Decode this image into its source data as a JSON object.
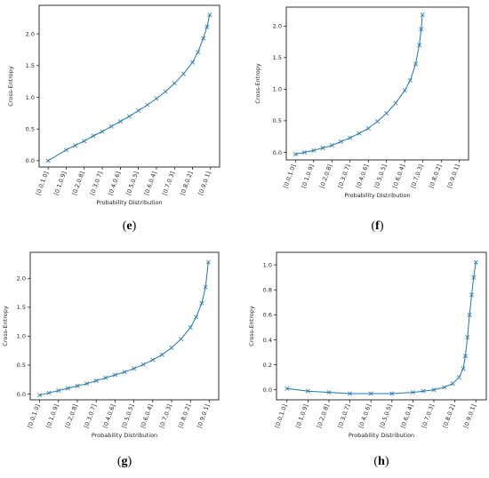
{
  "chart_data": [
    {
      "panel": "e",
      "caption": "(e)",
      "type": "line",
      "marker": "x",
      "color": "#1f77b4",
      "xlabel": "Probability Distribution",
      "ylabel": "Cross-Entropy",
      "x_ticks": [
        "[0.0,1.0]",
        "[0.1,0.9]",
        "[0.2,0.8]",
        "[0.3,0.7]",
        "[0.4,0.6]",
        "[0.5,0.5]",
        "[0.6,0.4]",
        "[0.7,0.3]",
        "[0.8,0.2]",
        "[0.9,0.1]"
      ],
      "y_ticks": [
        "0.0",
        "0.5",
        "1.0",
        "1.5",
        "2.0"
      ],
      "xlim": [
        -0.5,
        9.5
      ],
      "ylim": [
        -0.1,
        2.45
      ],
      "x": [
        0,
        1,
        1.5,
        2,
        2.5,
        3,
        3.5,
        4,
        4.5,
        5,
        5.5,
        6,
        6.5,
        7,
        7.5,
        8,
        8.3,
        8.6,
        8.8,
        8.95
      ],
      "y": [
        0.0,
        0.17,
        0.24,
        0.31,
        0.39,
        0.46,
        0.54,
        0.62,
        0.7,
        0.79,
        0.88,
        0.98,
        1.09,
        1.22,
        1.37,
        1.55,
        1.71,
        1.93,
        2.11,
        2.3
      ],
      "grid": false,
      "legend": "none"
    },
    {
      "panel": "f",
      "caption": "(f)",
      "type": "line",
      "marker": "x",
      "color": "#1f77b4",
      "xlabel": "Probability Distribution",
      "ylabel": "Cross-Entropy",
      "x_ticks": [
        "[0.0,1.0]",
        "[0.1,0.9]",
        "[0.2,0.8]",
        "[0.3,0.7]",
        "[0.4,0.6]",
        "[0.5,0.5]",
        "[0.6,0.4]",
        "[0.7,0.3]",
        "[0.8,0.2]",
        "[0.9,0.1]"
      ],
      "y_ticks": [
        "0.0",
        "0.5",
        "1.0",
        "1.5",
        "2.0"
      ],
      "xlim": [
        -0.5,
        9.5
      ],
      "ylim": [
        -0.12,
        2.3
      ],
      "x": [
        0,
        0.5,
        1,
        1.5,
        2,
        2.5,
        3,
        3.5,
        4,
        4.5,
        5,
        5.5,
        6,
        6.3,
        6.6,
        6.8,
        6.9,
        6.97
      ],
      "y": [
        -0.03,
        0.0,
        0.03,
        0.07,
        0.11,
        0.17,
        0.23,
        0.3,
        0.38,
        0.49,
        0.62,
        0.78,
        0.98,
        1.14,
        1.4,
        1.7,
        1.95,
        2.18
      ],
      "grid": false,
      "legend": "none"
    },
    {
      "panel": "g",
      "caption": "(g)",
      "type": "line",
      "marker": "x",
      "color": "#1f77b4",
      "xlabel": "Probability Distribution",
      "ylabel": "Cross-Entropy",
      "x_ticks": [
        "[0.0,1.0]",
        "[0.1,0.9]",
        "[0.2,0.8]",
        "[0.3,0.7]",
        "[0.4,0.6]",
        "[0.5,0.5]",
        "[0.6,0.4]",
        "[0.7,0.3]",
        "[0.8,0.2]",
        "[0.9,0.1]"
      ],
      "y_ticks": [
        "0.0",
        "0.5",
        "1.0",
        "1.5",
        "2.0"
      ],
      "xlim": [
        -0.5,
        9.5
      ],
      "ylim": [
        -0.1,
        2.45
      ],
      "x": [
        0,
        0.5,
        1,
        1.5,
        2,
        2.5,
        3,
        3.5,
        4,
        4.5,
        5,
        5.5,
        6,
        6.5,
        7,
        7.5,
        8,
        8.3,
        8.6,
        8.8,
        8.95
      ],
      "y": [
        -0.02,
        0.02,
        0.06,
        0.1,
        0.14,
        0.18,
        0.23,
        0.28,
        0.33,
        0.38,
        0.44,
        0.51,
        0.59,
        0.68,
        0.8,
        0.95,
        1.15,
        1.33,
        1.57,
        1.85,
        2.28
      ],
      "grid": false,
      "legend": "none"
    },
    {
      "panel": "h",
      "caption": "(h)",
      "type": "line",
      "marker": "x",
      "color": "#1f77b4",
      "xlabel": "Probability Distribution",
      "ylabel": "Cross-Entropy",
      "x_ticks": [
        "[0.0,1.0]",
        "[0.1,0.9]",
        "[0.2,0.8]",
        "[0.3,0.7]",
        "[0.4,0.6]",
        "[0.5,0.5]",
        "[0.6,0.4]",
        "[0.7,0.3]",
        "[0.8,0.2]",
        "[0.9,0.1]"
      ],
      "y_ticks": [
        "0.0",
        "0.2",
        "0.4",
        "0.6",
        "0.8",
        "1.0"
      ],
      "xlim": [
        -0.5,
        9.5
      ],
      "ylim": [
        -0.08,
        1.1
      ],
      "x": [
        0,
        1,
        2,
        3,
        4,
        5,
        6,
        6.5,
        7,
        7.5,
        7.9,
        8.2,
        8.4,
        8.5,
        8.6,
        8.7,
        8.8,
        8.9,
        9.0
      ],
      "y": [
        0.01,
        -0.01,
        -0.02,
        -0.03,
        -0.03,
        -0.03,
        -0.02,
        -0.01,
        0.0,
        0.02,
        0.05,
        0.1,
        0.17,
        0.27,
        0.42,
        0.6,
        0.76,
        0.9,
        1.02
      ],
      "grid": false,
      "legend": "none"
    }
  ]
}
